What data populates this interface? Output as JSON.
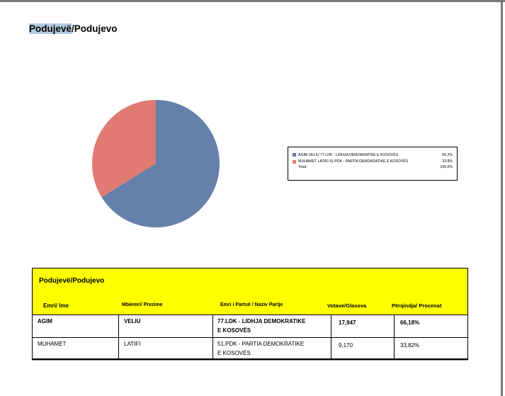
{
  "page": {
    "title_highlight": "Podujevë",
    "title_rest": "/Podujevo"
  },
  "chart_data": {
    "type": "pie",
    "title": "",
    "slices": [
      {
        "label": "AGIM VELIU 77.LDK - LIDHJA DEMOKRATIKE E KOSOVËS",
        "value": 66.2,
        "value_label": "66,2%",
        "color": "#6580aa"
      },
      {
        "label": "MUHAMET LATIFI 51.PDK - PARTIA DEMOKRATIKE E KOSOVËS",
        "value": 33.8,
        "value_label": "33,8%",
        "color": "#e07a72"
      }
    ],
    "total_label": "Total:",
    "total_value": "100,0%",
    "legend_placement": "right"
  },
  "results": {
    "title": "Podujevë/Podujevo",
    "headers": {
      "first_name": "Emri/ Ime",
      "last_name": "Mbiemri/ Prezime",
      "party": "Emri i Partsë / Naziv Partje",
      "votes": "Votave/Glasova",
      "percent": "Përqindja/ Procenat"
    },
    "rows": [
      {
        "first_name": "AGIM",
        "last_name": "VELIU",
        "party_line1": "77.LDK - LIDHJA DEMOKRATIKE",
        "party_line2": "E KOSOVËS",
        "votes": "17,947",
        "percent": "66,18%"
      },
      {
        "first_name": "MUHAMET",
        "last_name": "LATIFI",
        "party_line1": "51.PDK - PARTIA DEMOKRATIKE",
        "party_line2": "E KOSOVËS",
        "votes": "9,170",
        "percent": "33,82%"
      }
    ]
  }
}
